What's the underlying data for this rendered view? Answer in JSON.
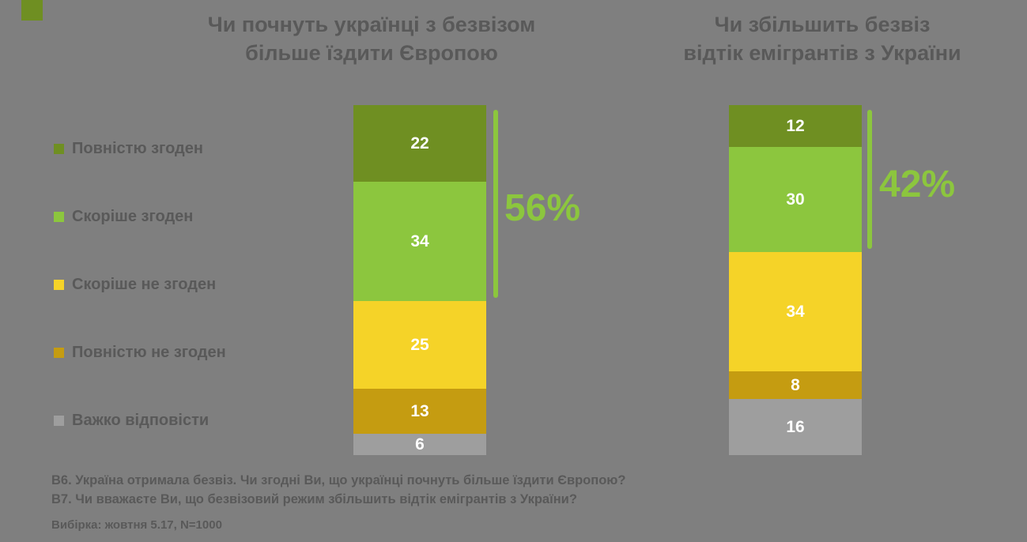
{
  "slide": {
    "colors": {
      "background": "#7f7f7f",
      "text": "#595959",
      "accent_green": "#8cc63e",
      "value_label": "#ffffff"
    }
  },
  "legend": {
    "items": [
      {
        "label": "Повністю згоден",
        "color": "#6f8f22"
      },
      {
        "label": "Скоріше згоден",
        "color": "#8cc63e"
      },
      {
        "label": "Скоріше не згоден",
        "color": "#f5d328"
      },
      {
        "label": "Повністю не згоден",
        "color": "#c59c11"
      },
      {
        "label": "Важко відповісти",
        "color": "#9e9e9e"
      }
    ]
  },
  "chart_data": [
    {
      "type": "bar",
      "stacked": true,
      "title": "Чи почнуть українці з безвізом\nбільше їздити Європою",
      "categories": [
        "Повністю згоден",
        "Скоріше згоден",
        "Скоріше не згоден",
        "Повністю не згоден",
        "Важко відповісти"
      ],
      "values": [
        22,
        34,
        25,
        13,
        6
      ],
      "agree_total_label": "56%",
      "ylim": [
        0,
        100
      ],
      "value_labels": "inside-white",
      "legend_position": "left",
      "grid": false
    },
    {
      "type": "bar",
      "stacked": true,
      "title": "Чи збільшить безвіз\nвідтік емігрантів з України",
      "categories": [
        "Повністю згоден",
        "Скоріше згоден",
        "Скоріше не згоден",
        "Повністю не згоден",
        "Важко відповісти"
      ],
      "values": [
        12,
        30,
        34,
        8,
        16
      ],
      "agree_total_label": "42%",
      "ylim": [
        0,
        100
      ],
      "value_labels": "inside-white",
      "legend_position": "left",
      "grid": false
    }
  ],
  "footnotes": {
    "line1": "В6. Україна отримала безвіз. Чи згодні Ви, що українці почнуть більше їздити Європою?",
    "line2": "В7. Чи вважаєте Ви, що безвізовий режим збільшить відтік емігрантів з України?",
    "line3": "Вибірка: жовтня 5.17, N=1000"
  }
}
